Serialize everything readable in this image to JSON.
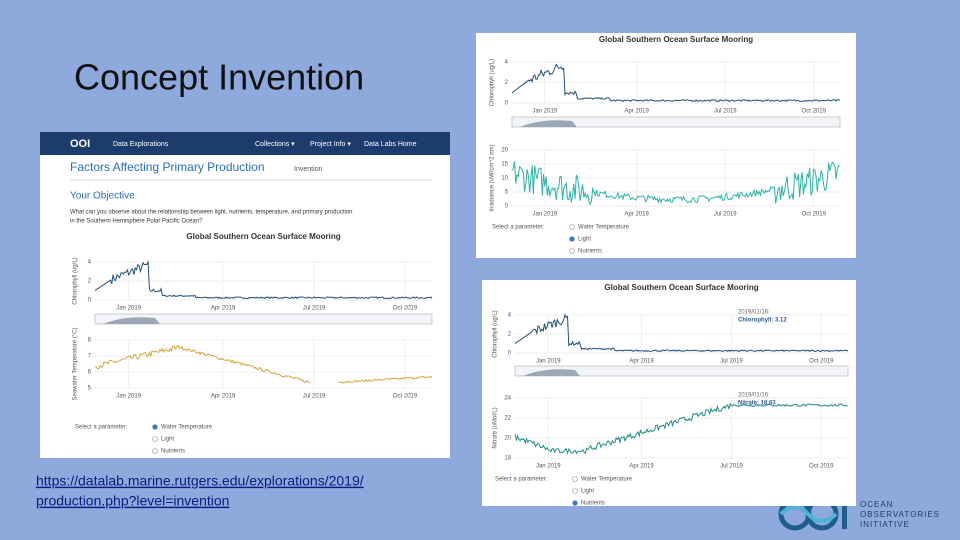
{
  "title": "Concept Invention",
  "link": [
    "https://datalab.marine.rutgers.edu/explorations/2019/",
    "production.php?level=invention"
  ],
  "left_screenshot": {
    "nav": {
      "logo": "OOI",
      "brand": "Data Explorations",
      "items": [
        "Collections ▾",
        "Project Info ▾",
        "Data Labs Home"
      ]
    },
    "heading": "Factors Affecting Primary Production",
    "level": "Invention",
    "objective_heading": "Your Objective",
    "objective": [
      "What can you observe about the relationship between light, nutrients, temperature, and primary production",
      "in the Southern Hemisphere Polar Pacific Ocean?"
    ],
    "chart_title": "Global Southern Ocean Surface Mooring",
    "x_ticks": [
      "Jan 2019",
      "Apr 2019",
      "Jul 2019",
      "Oct 2019"
    ],
    "charts": [
      {
        "y_label": "Chlorophyll (ug/L)",
        "yticks": [
          4,
          2,
          0
        ]
      },
      {
        "y_label": "Seawater Temperature (°C)",
        "yticks": [
          8,
          7,
          6,
          5
        ]
      }
    ],
    "selector": {
      "label": "Select a parameter:",
      "options": [
        "Water Temperature",
        "Light",
        "Nutrients"
      ],
      "selected": 0
    }
  },
  "top_right_screenshot": {
    "chart_title": "Global Southern Ocean Surface Mooring",
    "x_ticks": [
      "Jan 2019",
      "Apr 2019",
      "Jul 2019",
      "Oct 2019"
    ],
    "charts": [
      {
        "y_label": "Chlorophyll (ug/L)",
        "yticks": [
          4,
          2,
          0
        ]
      },
      {
        "y_label": "Irradiance (uW/cm^2 nm)",
        "yticks": [
          20,
          15,
          10,
          5,
          0
        ]
      }
    ],
    "selector": {
      "label": "Select a parameter:",
      "options": [
        "Water Temperature",
        "Light",
        "Nutrients"
      ],
      "selected": 1
    }
  },
  "bottom_right_screenshot": {
    "chart_title": "Global Southern Ocean Surface Mooring",
    "x_ticks": [
      "Jan 2019",
      "Apr 2019",
      "Jul 2019",
      "Oct 2019"
    ],
    "charts": [
      {
        "y_label": "Chlorophyll (ug/L)",
        "yticks": [
          4,
          2,
          0
        ],
        "tooltip": {
          "date": "2019/01/16:",
          "label": "Chlorophyll: 3.12"
        }
      },
      {
        "y_label": "Nitrate (uMol/L)",
        "yticks": [
          24,
          22,
          20,
          18
        ],
        "tooltip": {
          "date": "2019/01/16:",
          "label": "Nitrate: 18.63"
        }
      }
    ],
    "selector": {
      "label": "Select a parameter:",
      "options": [
        "Water Temperature",
        "Light",
        "Nutrients"
      ],
      "selected": 2
    }
  },
  "logo": [
    "OCEAN",
    "OBSERVATORIES",
    "INITIATIVE"
  ]
}
